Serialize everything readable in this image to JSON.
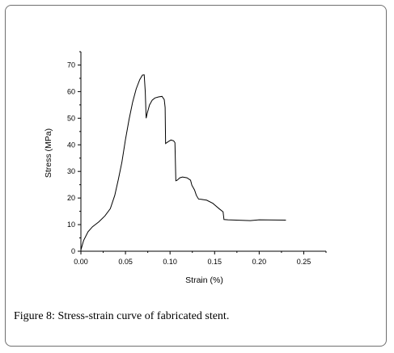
{
  "chart_data": {
    "type": "line",
    "title": "",
    "xlabel": "Strain (%)",
    "ylabel": "Stress (MPa)",
    "xlim": [
      0.0,
      0.275
    ],
    "ylim": [
      0,
      75
    ],
    "xticks": [
      "0.00",
      "0.05",
      "0.10",
      "0.15",
      "0.20",
      "0.25"
    ],
    "yticks": [
      "0",
      "10",
      "20",
      "30",
      "40",
      "50",
      "60",
      "70"
    ],
    "grid": false,
    "legend": "none",
    "series": [
      {
        "x": [
          0.0,
          0.003,
          0.008,
          0.013,
          0.02,
          0.027,
          0.033,
          0.038,
          0.042,
          0.046,
          0.05,
          0.054,
          0.058,
          0.062,
          0.066,
          0.069,
          0.071,
          0.0722,
          0.0732,
          0.0745,
          0.077,
          0.08,
          0.083,
          0.087,
          0.091,
          0.0935,
          0.0945,
          0.095,
          0.098,
          0.101,
          0.104,
          0.1055,
          0.1065,
          0.108,
          0.111,
          0.114,
          0.119,
          0.123,
          0.1245,
          0.1275,
          0.1295,
          0.132,
          0.135,
          0.141,
          0.148,
          0.155,
          0.1595,
          0.1605,
          0.165,
          0.19,
          0.2,
          0.23
        ],
        "y": [
          0.5,
          4,
          7.3,
          9.2,
          11,
          13.3,
          16,
          21,
          27,
          33.5,
          42,
          49.5,
          56,
          61,
          64.5,
          66.2,
          66.3,
          60,
          50,
          52,
          55,
          56.8,
          57.6,
          58,
          58.2,
          57,
          54,
          40.5,
          41.2,
          41.8,
          41.5,
          40.8,
          26.5,
          26.7,
          27.6,
          27.9,
          27.6,
          26.7,
          24.8,
          23,
          21,
          19.6,
          19.5,
          19.2,
          18,
          16,
          14.8,
          11.9,
          11.8,
          11.5,
          11.8,
          11.7
        ]
      }
    ]
  },
  "caption": {
    "label": "Figure 8:",
    "text": " Stress-strain curve of fabricated stent."
  }
}
